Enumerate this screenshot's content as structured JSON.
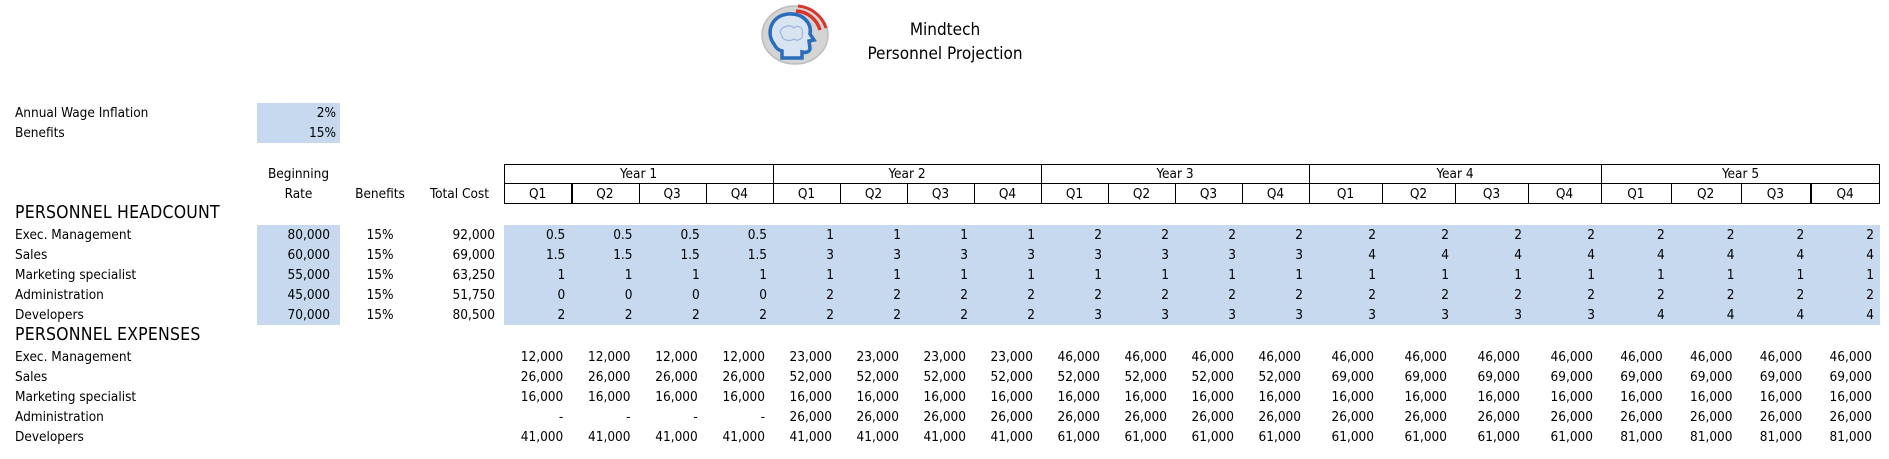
{
  "header": {
    "company": "Mindtech",
    "subtitle": "Personnel Projection"
  },
  "assumptions": [
    {
      "label": "Annual Wage Inflation",
      "value": "2%"
    },
    {
      "label": "Benefits",
      "value": "15%"
    }
  ],
  "columns": {
    "beginning_rate_line1": "Beginning",
    "beginning_rate_line2": "Rate",
    "benefits": "Benefits",
    "total_cost": "Total Cost"
  },
  "years": [
    "Year 1",
    "Year 2",
    "Year 3",
    "Year 4",
    "Year 5"
  ],
  "quarters": [
    "Q1",
    "Q2",
    "Q3",
    "Q4"
  ],
  "headcount": {
    "title": "PERSONNEL HEADCOUNT",
    "rows": [
      {
        "label": "Exec. Management",
        "rate": "80,000",
        "benefits": "15%",
        "total": "92,000",
        "values": [
          "0.5",
          "0.5",
          "0.5",
          "0.5",
          "1",
          "1",
          "1",
          "1",
          "2",
          "2",
          "2",
          "2",
          "2",
          "2",
          "2",
          "2",
          "2",
          "2",
          "2",
          "2"
        ]
      },
      {
        "label": "Sales",
        "rate": "60,000",
        "benefits": "15%",
        "total": "69,000",
        "values": [
          "1.5",
          "1.5",
          "1.5",
          "1.5",
          "3",
          "3",
          "3",
          "3",
          "3",
          "3",
          "3",
          "3",
          "4",
          "4",
          "4",
          "4",
          "4",
          "4",
          "4",
          "4"
        ]
      },
      {
        "label": "Marketing specialist",
        "rate": "55,000",
        "benefits": "15%",
        "total": "63,250",
        "values": [
          "1",
          "1",
          "1",
          "1",
          "1",
          "1",
          "1",
          "1",
          "1",
          "1",
          "1",
          "1",
          "1",
          "1",
          "1",
          "1",
          "1",
          "1",
          "1",
          "1"
        ]
      },
      {
        "label": "Administration",
        "rate": "45,000",
        "benefits": "15%",
        "total": "51,750",
        "values": [
          "0",
          "0",
          "0",
          "0",
          "2",
          "2",
          "2",
          "2",
          "2",
          "2",
          "2",
          "2",
          "2",
          "2",
          "2",
          "2",
          "2",
          "2",
          "2",
          "2"
        ]
      },
      {
        "label": "Developers",
        "rate": "70,000",
        "benefits": "15%",
        "total": "80,500",
        "values": [
          "2",
          "2",
          "2",
          "2",
          "2",
          "2",
          "2",
          "2",
          "3",
          "3",
          "3",
          "3",
          "3",
          "3",
          "3",
          "3",
          "4",
          "4",
          "4",
          "4"
        ]
      }
    ]
  },
  "expenses": {
    "title": "PERSONNEL EXPENSES",
    "rows": [
      {
        "label": "Exec. Management",
        "values": [
          "12,000",
          "12,000",
          "12,000",
          "12,000",
          "23,000",
          "23,000",
          "23,000",
          "23,000",
          "46,000",
          "46,000",
          "46,000",
          "46,000",
          "46,000",
          "46,000",
          "46,000",
          "46,000",
          "46,000",
          "46,000",
          "46,000",
          "46,000"
        ]
      },
      {
        "label": "Sales",
        "values": [
          "26,000",
          "26,000",
          "26,000",
          "26,000",
          "52,000",
          "52,000",
          "52,000",
          "52,000",
          "52,000",
          "52,000",
          "52,000",
          "52,000",
          "69,000",
          "69,000",
          "69,000",
          "69,000",
          "69,000",
          "69,000",
          "69,000",
          "69,000"
        ]
      },
      {
        "label": "Marketing specialist",
        "values": [
          "16,000",
          "16,000",
          "16,000",
          "16,000",
          "16,000",
          "16,000",
          "16,000",
          "16,000",
          "16,000",
          "16,000",
          "16,000",
          "16,000",
          "16,000",
          "16,000",
          "16,000",
          "16,000",
          "16,000",
          "16,000",
          "16,000",
          "16,000"
        ]
      },
      {
        "label": "Administration",
        "values": [
          "-",
          "-",
          "-",
          "-",
          "26,000",
          "26,000",
          "26,000",
          "26,000",
          "26,000",
          "26,000",
          "26,000",
          "26,000",
          "26,000",
          "26,000",
          "26,000",
          "26,000",
          "26,000",
          "26,000",
          "26,000",
          "26,000"
        ]
      },
      {
        "label": "Developers",
        "values": [
          "41,000",
          "41,000",
          "41,000",
          "41,000",
          "41,000",
          "41,000",
          "41,000",
          "41,000",
          "61,000",
          "61,000",
          "61,000",
          "61,000",
          "61,000",
          "61,000",
          "61,000",
          "61,000",
          "81,000",
          "81,000",
          "81,000",
          "81,000"
        ]
      }
    ]
  },
  "colors": {
    "input_fill": "#c6d9ef",
    "logo_ring": "#c9c9c9",
    "logo_head": "#2a6dbb",
    "logo_arc": "#d9362b"
  },
  "icons": {
    "logo": "brain-head-logo"
  }
}
